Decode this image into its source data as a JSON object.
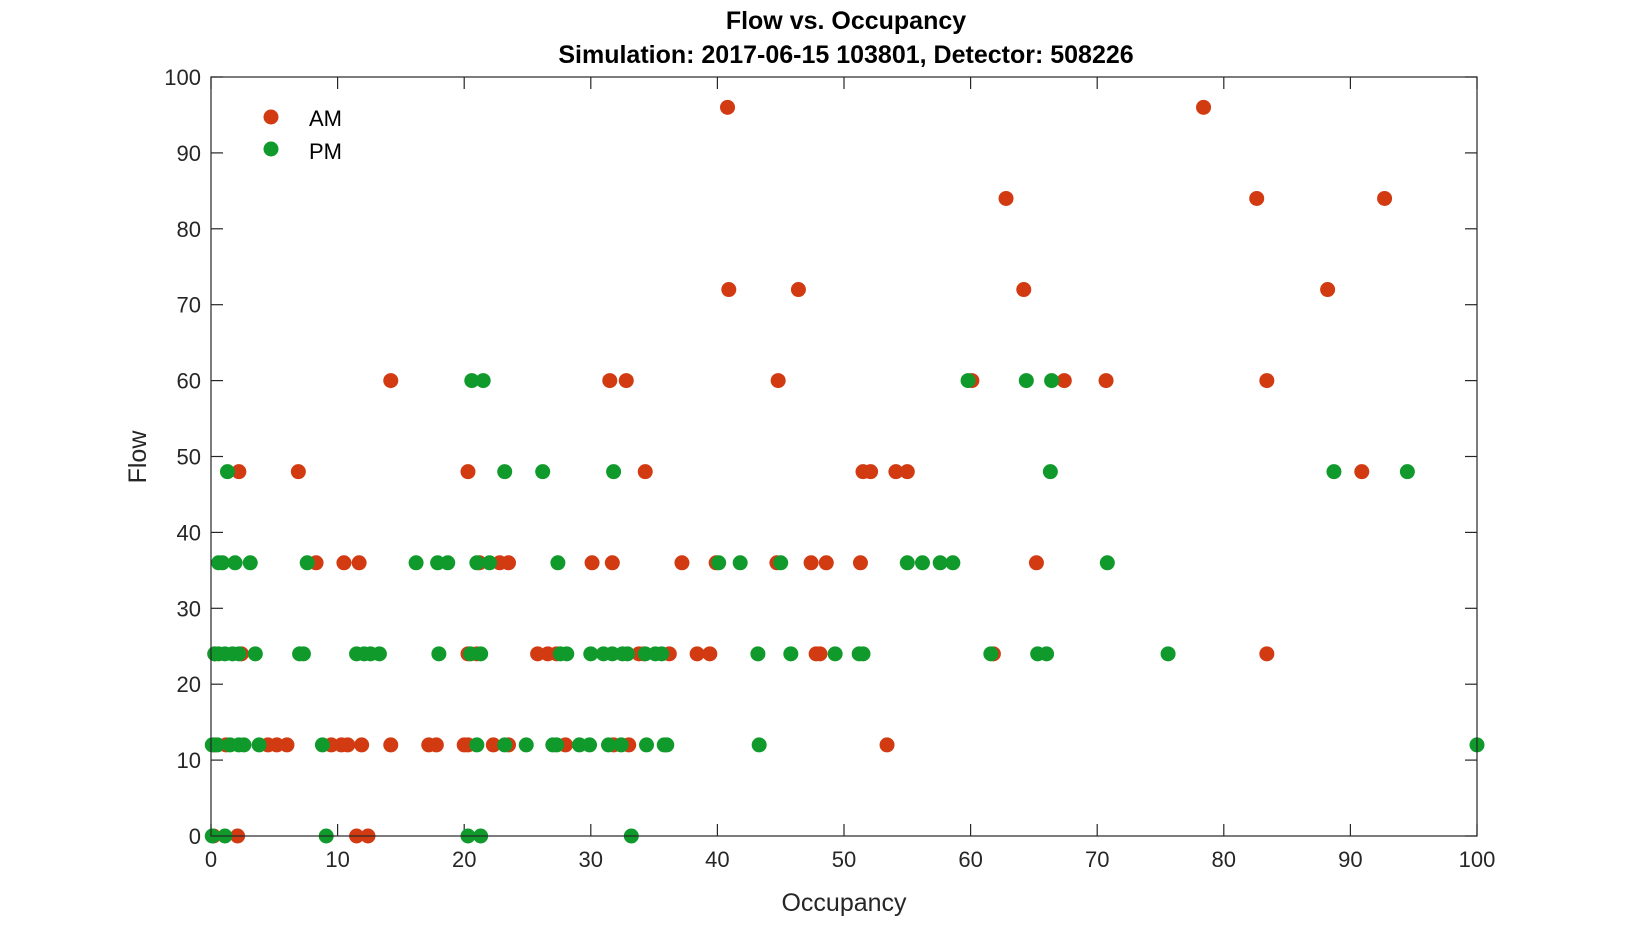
{
  "chart_data": {
    "type": "scatter",
    "title": "Flow vs. Occupancy",
    "subtitle": "Simulation:  2017-06-15 103801,  Detector:  508226",
    "xlabel": "Occupancy",
    "ylabel": "Flow",
    "xlim": [
      0,
      100
    ],
    "ylim": [
      0,
      100
    ],
    "xticks": [
      0,
      10,
      20,
      30,
      40,
      50,
      60,
      70,
      80,
      90,
      100
    ],
    "yticks": [
      0,
      10,
      20,
      30,
      40,
      50,
      60,
      70,
      80,
      90,
      100
    ],
    "grid": false,
    "legend_position": "top-left",
    "series": [
      {
        "name": "AM",
        "color": "#d23a12",
        "points": [
          [
            0.2,
            0
          ],
          [
            2.1,
            0
          ],
          [
            11.5,
            0
          ],
          [
            12.4,
            0
          ],
          [
            0.3,
            12
          ],
          [
            1.2,
            12
          ],
          [
            4.5,
            12
          ],
          [
            5.2,
            12
          ],
          [
            6.0,
            12
          ],
          [
            9.5,
            12
          ],
          [
            10.3,
            12
          ],
          [
            10.8,
            12
          ],
          [
            11.9,
            12
          ],
          [
            14.2,
            12
          ],
          [
            17.2,
            12
          ],
          [
            17.8,
            12
          ],
          [
            20.0,
            12
          ],
          [
            20.3,
            12
          ],
          [
            22.3,
            12
          ],
          [
            23.5,
            12
          ],
          [
            28.0,
            12
          ],
          [
            31.8,
            12
          ],
          [
            33.0,
            12
          ],
          [
            53.4,
            12
          ],
          [
            0.3,
            24
          ],
          [
            2.4,
            24
          ],
          [
            20.3,
            24
          ],
          [
            21.0,
            24
          ],
          [
            25.8,
            24
          ],
          [
            26.6,
            24
          ],
          [
            27.3,
            24
          ],
          [
            33.8,
            24
          ],
          [
            34.2,
            24
          ],
          [
            36.2,
            24
          ],
          [
            38.4,
            24
          ],
          [
            39.4,
            24
          ],
          [
            47.8,
            24
          ],
          [
            48.1,
            24
          ],
          [
            61.8,
            24
          ],
          [
            83.4,
            24
          ],
          [
            8.3,
            36
          ],
          [
            10.5,
            36
          ],
          [
            11.7,
            36
          ],
          [
            21.2,
            36
          ],
          [
            22.8,
            36
          ],
          [
            23.5,
            36
          ],
          [
            30.1,
            36
          ],
          [
            31.7,
            36
          ],
          [
            37.2,
            36
          ],
          [
            39.9,
            36
          ],
          [
            44.7,
            36
          ],
          [
            47.4,
            36
          ],
          [
            48.6,
            36
          ],
          [
            51.3,
            36
          ],
          [
            65.2,
            36
          ],
          [
            2.2,
            48
          ],
          [
            6.9,
            48
          ],
          [
            20.3,
            48
          ],
          [
            34.3,
            48
          ],
          [
            51.5,
            48
          ],
          [
            52.1,
            48
          ],
          [
            54.1,
            48
          ],
          [
            55.0,
            48
          ],
          [
            90.9,
            48
          ],
          [
            14.2,
            60
          ],
          [
            31.5,
            60
          ],
          [
            32.8,
            60
          ],
          [
            44.8,
            60
          ],
          [
            60.1,
            60
          ],
          [
            67.4,
            60
          ],
          [
            70.7,
            60
          ],
          [
            83.4,
            60
          ],
          [
            40.9,
            72
          ],
          [
            46.4,
            72
          ],
          [
            64.2,
            72
          ],
          [
            88.2,
            72
          ],
          [
            62.8,
            84
          ],
          [
            82.6,
            84
          ],
          [
            92.7,
            84
          ],
          [
            40.8,
            96
          ],
          [
            78.4,
            96
          ]
        ]
      },
      {
        "name": "PM",
        "color": "#109a2c",
        "points": [
          [
            0.1,
            0
          ],
          [
            1.1,
            0
          ],
          [
            9.1,
            0
          ],
          [
            20.3,
            0
          ],
          [
            21.3,
            0
          ],
          [
            33.2,
            0
          ],
          [
            0.1,
            12
          ],
          [
            0.5,
            12
          ],
          [
            1.5,
            12
          ],
          [
            2.2,
            12
          ],
          [
            2.6,
            12
          ],
          [
            3.8,
            12
          ],
          [
            8.8,
            12
          ],
          [
            21.0,
            12
          ],
          [
            23.2,
            12
          ],
          [
            24.9,
            12
          ],
          [
            27.0,
            12
          ],
          [
            27.3,
            12
          ],
          [
            29.1,
            12
          ],
          [
            29.9,
            12
          ],
          [
            31.4,
            12
          ],
          [
            32.4,
            12
          ],
          [
            34.4,
            12
          ],
          [
            35.8,
            12
          ],
          [
            36.0,
            12
          ],
          [
            43.3,
            12
          ],
          [
            100.0,
            12
          ],
          [
            0.3,
            24
          ],
          [
            0.6,
            24
          ],
          [
            1.1,
            24
          ],
          [
            1.7,
            24
          ],
          [
            2.2,
            24
          ],
          [
            3.5,
            24
          ],
          [
            7.0,
            24
          ],
          [
            7.3,
            24
          ],
          [
            11.5,
            24
          ],
          [
            12.1,
            24
          ],
          [
            12.6,
            24
          ],
          [
            13.3,
            24
          ],
          [
            18.0,
            24
          ],
          [
            20.5,
            24
          ],
          [
            21.3,
            24
          ],
          [
            27.6,
            24
          ],
          [
            28.1,
            24
          ],
          [
            30.0,
            24
          ],
          [
            31.0,
            24
          ],
          [
            31.7,
            24
          ],
          [
            32.5,
            24
          ],
          [
            32.9,
            24
          ],
          [
            34.3,
            24
          ],
          [
            35.1,
            24
          ],
          [
            35.6,
            24
          ],
          [
            43.2,
            24
          ],
          [
            45.8,
            24
          ],
          [
            49.3,
            24
          ],
          [
            51.2,
            24
          ],
          [
            51.5,
            24
          ],
          [
            61.6,
            24
          ],
          [
            65.3,
            24
          ],
          [
            66.0,
            24
          ],
          [
            75.6,
            24
          ],
          [
            0.6,
            36
          ],
          [
            0.9,
            36
          ],
          [
            1.9,
            36
          ],
          [
            3.1,
            36
          ],
          [
            7.6,
            36
          ],
          [
            16.2,
            36
          ],
          [
            17.9,
            36
          ],
          [
            18.7,
            36
          ],
          [
            21.0,
            36
          ],
          [
            22.0,
            36
          ],
          [
            27.4,
            36
          ],
          [
            40.1,
            36
          ],
          [
            41.8,
            36
          ],
          [
            45.0,
            36
          ],
          [
            55.0,
            36
          ],
          [
            56.2,
            36
          ],
          [
            57.6,
            36
          ],
          [
            58.6,
            36
          ],
          [
            70.8,
            36
          ],
          [
            1.3,
            48
          ],
          [
            23.2,
            48
          ],
          [
            26.2,
            48
          ],
          [
            31.8,
            48
          ],
          [
            66.3,
            48
          ],
          [
            88.7,
            48
          ],
          [
            94.5,
            48
          ],
          [
            20.6,
            60
          ],
          [
            21.5,
            60
          ],
          [
            59.8,
            60
          ],
          [
            64.4,
            60
          ],
          [
            66.4,
            60
          ]
        ]
      }
    ]
  }
}
